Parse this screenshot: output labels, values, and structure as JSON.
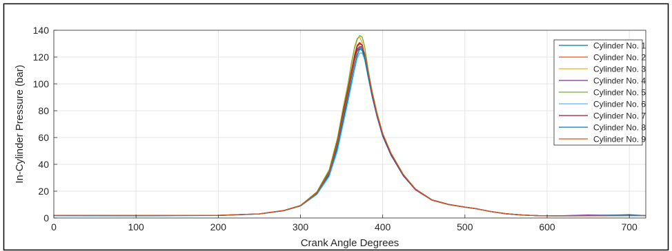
{
  "chart_data": {
    "type": "line",
    "title": "",
    "xlabel": "Crank Angle Degrees",
    "ylabel": "In-Cylinder Pressure (bar)",
    "xlim": [
      0,
      720
    ],
    "ylim": [
      0,
      140
    ],
    "xticks": [
      0,
      100,
      200,
      300,
      400,
      500,
      600,
      700
    ],
    "yticks": [
      0,
      20,
      40,
      60,
      80,
      100,
      120,
      140
    ],
    "grid": true,
    "legend_position": "top-right",
    "x": [
      0,
      100,
      200,
      250,
      280,
      300,
      320,
      335,
      345,
      352,
      358,
      362,
      366,
      369,
      372,
      375,
      378,
      382,
      387,
      393,
      400,
      410,
      425,
      440,
      460,
      480,
      500,
      515,
      530,
      550,
      570,
      590,
      610,
      650,
      700,
      720
    ],
    "series": [
      {
        "name": "Cylinder No. 1",
        "color": "#0072BD",
        "values": [
          1.8,
          1.7,
          1.9,
          3.0,
          5.5,
          9.0,
          18.0,
          32.0,
          52.0,
          72.0,
          89.0,
          101.0,
          113.0,
          121.0,
          126.0,
          125.0,
          119.0,
          106.0,
          92.0,
          77.0,
          62.0,
          48.0,
          32.0,
          21.5,
          13.5,
          10.2,
          8.1,
          6.8,
          5.0,
          3.2,
          2.2,
          1.7,
          1.5,
          1.6,
          1.8,
          1.7
        ]
      },
      {
        "name": "Cylinder No. 2",
        "color": "#D95319",
        "values": [
          2.0,
          1.9,
          2.0,
          3.1,
          5.6,
          9.3,
          19.0,
          35.0,
          58.0,
          80.0,
          97.0,
          110.0,
          122.0,
          129.0,
          131.0,
          129.0,
          121.0,
          107.0,
          91.0,
          76.0,
          61.0,
          47.0,
          31.5,
          21.0,
          13.2,
          10.0,
          8.0,
          6.7,
          4.9,
          3.1,
          2.2,
          1.7,
          1.6,
          1.7,
          1.9,
          1.8
        ]
      },
      {
        "name": "Cylinder No. 3",
        "color": "#EDB120",
        "values": [
          1.9,
          1.8,
          2.0,
          3.1,
          5.7,
          9.4,
          19.5,
          36.0,
          60.0,
          83.0,
          101.0,
          116.0,
          128.0,
          134.0,
          135.0,
          131.0,
          122.0,
          107.0,
          91.0,
          76.0,
          61.0,
          47.0,
          31.5,
          21.0,
          13.2,
          10.0,
          8.0,
          6.7,
          4.9,
          3.1,
          2.2,
          1.7,
          1.6,
          1.7,
          1.8,
          1.7
        ]
      },
      {
        "name": "Cylinder No. 4",
        "color": "#7E2F8E",
        "values": [
          1.8,
          1.8,
          1.9,
          3.0,
          5.6,
          9.2,
          18.8,
          34.0,
          56.0,
          78.0,
          95.0,
          108.0,
          119.0,
          126.0,
          128.0,
          127.0,
          120.0,
          106.0,
          91.0,
          76.0,
          61.0,
          47.0,
          31.5,
          21.0,
          13.3,
          10.0,
          8.0,
          6.7,
          4.9,
          3.1,
          2.2,
          1.7,
          1.6,
          2.2,
          1.9,
          1.8
        ]
      },
      {
        "name": "Cylinder No. 5",
        "color": "#77AC30",
        "values": [
          1.9,
          1.8,
          2.0,
          3.1,
          5.7,
          9.4,
          19.5,
          36.0,
          59.0,
          82.0,
          100.0,
          115.0,
          127.0,
          133.0,
          136.0,
          135.0,
          128.0,
          112.0,
          95.0,
          79.0,
          63.0,
          48.5,
          32.5,
          21.5,
          13.5,
          10.2,
          8.1,
          6.8,
          5.0,
          3.2,
          2.2,
          1.7,
          1.6,
          1.7,
          1.8,
          1.7
        ]
      },
      {
        "name": "Cylinder No. 6",
        "color": "#4DBEEE",
        "values": [
          1.8,
          1.7,
          1.9,
          3.0,
          5.4,
          8.8,
          17.5,
          31.0,
          50.0,
          70.0,
          87.0,
          99.0,
          111.0,
          119.0,
          123.0,
          123.0,
          118.0,
          106.0,
          92.0,
          77.0,
          62.0,
          48.0,
          32.0,
          21.5,
          13.5,
          10.2,
          8.1,
          6.8,
          5.0,
          3.2,
          2.2,
          1.7,
          1.5,
          1.6,
          1.7,
          1.6
        ]
      },
      {
        "name": "Cylinder No. 7",
        "color": "#A2142F",
        "values": [
          1.9,
          1.8,
          2.0,
          3.1,
          5.6,
          9.2,
          18.8,
          34.5,
          57.0,
          79.0,
          96.0,
          109.0,
          121.0,
          128.0,
          130.0,
          129.0,
          122.0,
          108.0,
          92.0,
          77.0,
          62.0,
          48.0,
          32.0,
          21.5,
          13.5,
          10.2,
          8.1,
          6.8,
          5.0,
          3.2,
          2.2,
          1.7,
          1.6,
          1.7,
          1.9,
          1.8
        ]
      },
      {
        "name": "Cylinder No. 8",
        "color": "#0072BD",
        "values": [
          1.8,
          1.7,
          1.9,
          3.0,
          5.5,
          9.0,
          18.2,
          33.0,
          54.0,
          75.0,
          92.0,
          105.0,
          117.0,
          124.0,
          127.0,
          126.0,
          120.0,
          107.0,
          92.0,
          77.0,
          62.0,
          48.0,
          32.0,
          21.5,
          13.5,
          10.2,
          8.1,
          6.8,
          5.0,
          3.2,
          2.2,
          1.7,
          1.6,
          1.7,
          2.5,
          1.8
        ]
      },
      {
        "name": "Cylinder No. 9",
        "color": "#D95319",
        "values": [
          1.9,
          1.8,
          2.0,
          3.1,
          5.6,
          9.2,
          18.6,
          34.0,
          56.0,
          77.0,
          94.0,
          107.0,
          118.0,
          125.0,
          128.0,
          128.0,
          123.0,
          110.0,
          94.0,
          78.0,
          63.0,
          48.5,
          32.5,
          21.5,
          13.5,
          10.2,
          8.1,
          6.8,
          5.0,
          3.2,
          2.2,
          1.7,
          1.6,
          1.7,
          1.9,
          1.8
        ]
      }
    ]
  }
}
